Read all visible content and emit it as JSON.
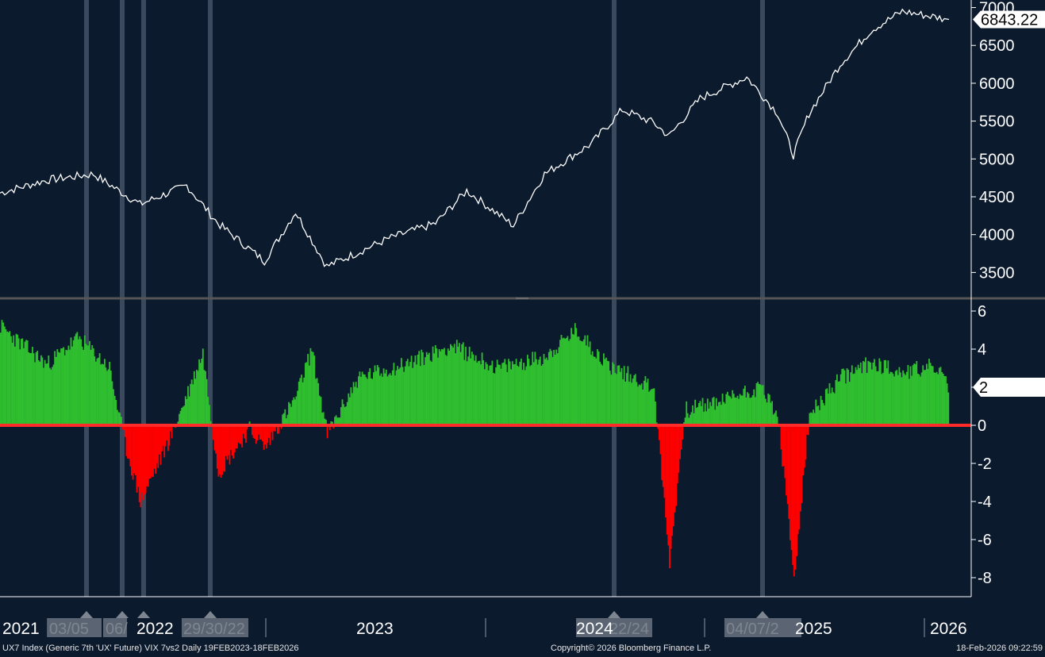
{
  "footer": {
    "source": "UX7 Index (Generic 7th 'UX' Future) VIX 7vs2 Daily 19FEB2023-18FEB2026",
    "copyright": "Copyright© 2026 Bloomberg Finance L.P.",
    "timestamp": "18-Feb-2026 09:22:59"
  },
  "chart_data": [
    {
      "type": "line",
      "series": [
        {
          "x": [
            "2021-01",
            "2021-04",
            "2021-07",
            "2021-10",
            "2022-01",
            "2022-03",
            "2022-06",
            "2022-08",
            "2022-10",
            "2023-02",
            "2023-05",
            "2023-07",
            "2023-10",
            "2023-12",
            "2024-03",
            "2024-05",
            "2024-07",
            "2024-08",
            "2024-10",
            "2025-01",
            "2025-03",
            "2025-04",
            "2025-05",
            "2025-07",
            "2025-09",
            "2025-11",
            "2026-02"
          ],
          "values": [
            4550,
            4720,
            4800,
            4400,
            4650,
            4150,
            3650,
            4300,
            3580,
            3950,
            4150,
            4580,
            4120,
            4800,
            5200,
            5650,
            5480,
            5300,
            5800,
            6080,
            5600,
            5050,
            5600,
            6250,
            6700,
            6950,
            6843.22
          ]
        }
      ],
      "ylim": [
        3200,
        7100
      ],
      "yticks": [
        "3500",
        "4000",
        "4500",
        "5000",
        "5500",
        "6000",
        "6500",
        "7000"
      ],
      "last_value_label": "6843.22",
      "colors": {
        "line": "#ffffff",
        "background": "#0c1a2e",
        "label_bg": "#ffffff",
        "label_text": "#000000"
      }
    },
    {
      "type": "area",
      "series": [
        {
          "x": [
            "2021-01",
            "2021-02",
            "2021-04",
            "2021-06",
            "2021-08",
            "2021-09",
            "2021-10",
            "2021-12",
            "2022-02",
            "2022-03",
            "2022-05",
            "2022-06",
            "2022-08",
            "2022-09",
            "2022-10",
            "2022-12",
            "2023-03",
            "2023-06",
            "2023-09",
            "2023-12",
            "2024-02",
            "2024-04",
            "2024-05",
            "2024-07",
            "2024-08",
            "2024-09",
            "2024-11",
            "2025-01",
            "2025-02",
            "2025-03",
            "2025-04",
            "2025-05",
            "2025-07",
            "2025-09",
            "2025-11",
            "2026-01",
            "2026-02"
          ],
          "values": [
            5.2,
            4.5,
            3.2,
            4.6,
            3.0,
            -1.0,
            -4.0,
            -0.5,
            3.8,
            -2.5,
            -0.2,
            -1.2,
            1.5,
            4.0,
            -0.5,
            2.5,
            3.2,
            4.2,
            3.0,
            3.6,
            5.0,
            3.2,
            2.8,
            2.0,
            -7.2,
            0.8,
            1.2,
            1.8,
            2.0,
            0.3,
            -8.0,
            0.5,
            2.5,
            3.3,
            2.8,
            3.1,
            2.0
          ]
        }
      ],
      "ylim": [
        -9,
        6.5
      ],
      "yticks": [
        "-8",
        "-6",
        "-4",
        "-2",
        "0",
        "2",
        "4",
        "6"
      ],
      "last_value_label": "2",
      "colors": {
        "positive": "#2fbe2f",
        "negative": "#ff0000",
        "zero_line": "#ff2a2a"
      }
    }
  ],
  "x_axis": {
    "years": [
      "2021",
      "2022",
      "2023",
      "2024",
      "2025",
      "2026"
    ],
    "event_labels": [
      "03/05",
      "06/",
      "",
      "29/30/22",
      "22/24",
      "04/07/2"
    ]
  },
  "event_marker_color": "#4a5a6e"
}
